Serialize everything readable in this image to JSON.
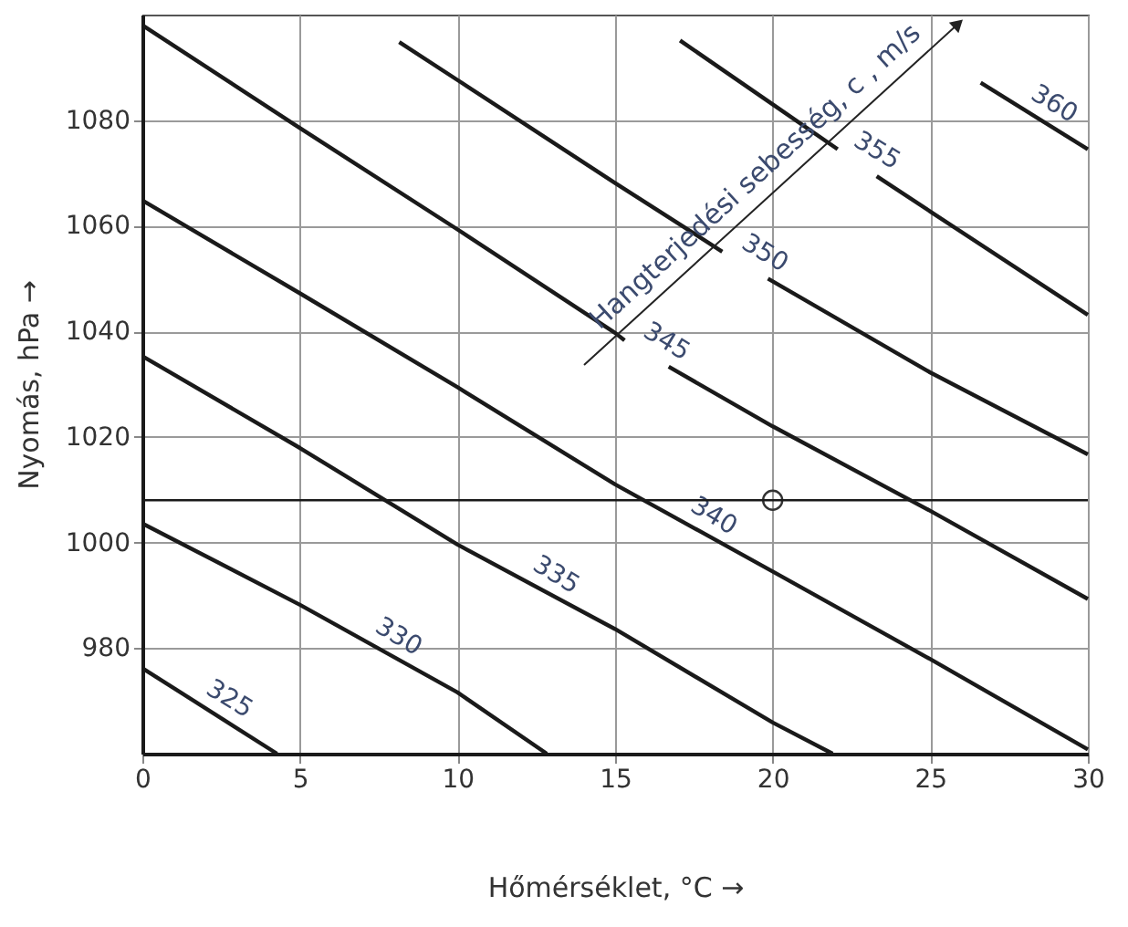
{
  "chart_data": {
    "type": "line",
    "xlabel": "Hőmérséklet, °C →",
    "ylabel": "Nyomás, hPa →",
    "annotations": [
      "Hangterjedési sebesség, c , m/s"
    ],
    "xlim": [
      0,
      30
    ],
    "xticks": [
      0,
      5,
      10,
      15,
      20,
      25,
      30
    ],
    "ylim": [
      960,
      1100
    ],
    "yticks": [
      980,
      1000,
      1020,
      1040,
      1060,
      1080
    ],
    "grid": true,
    "legend": false,
    "marker": "none",
    "line_style": "solid",
    "series": [
      {
        "name": "325",
        "color": "#1a1a1a",
        "x": [
          0,
          4.27
        ],
        "values": [
          976.2,
          960
        ]
      },
      {
        "name": "330",
        "color": "#1a1a1a",
        "x": [
          0,
          5,
          10,
          12.83
        ],
        "values": [
          1003.6,
          988.2,
          971.6,
          960
        ]
      },
      {
        "name": "335",
        "color": "#1a1a1a",
        "x": [
          0,
          5,
          10,
          15,
          20,
          21.9
        ],
        "values": [
          1035.3,
          1017.9,
          999.6,
          983.6,
          965.9,
          960
        ]
      },
      {
        "name": "340",
        "color": "#1a1a1a",
        "x": [
          0,
          5,
          10,
          15,
          20,
          25,
          30
        ],
        "values": [
          1064.8,
          1047.2,
          1029.4,
          1011,
          994.5,
          977.9,
          960.8
        ]
      },
      {
        "name": "345",
        "color": "#1a1a1a",
        "x": [
          0,
          5,
          10,
          15,
          15.3,
          16,
          16.7,
          20,
          25,
          30
        ],
        "values": [
          1098,
          1078.5,
          1059.3,
          1039.7,
          1038.3,
          null,
          1033.3,
          1022,
          1006,
          989.3
        ]
      },
      {
        "name": "350",
        "color": "#1a1a1a",
        "x": [
          8.15,
          10,
          15,
          18.4,
          19.1,
          19.85,
          25,
          30
        ],
        "values": [
          1094.8,
          1087.6,
          1068.1,
          1055.1,
          null,
          1050,
          1032.2,
          1016.7
        ]
      },
      {
        "name": "355",
        "color": "#1a1a1a",
        "x": [
          17.06,
          20,
          22.06,
          22.7,
          23.3,
          25,
          30
        ],
        "values": [
          1095.1,
          1083,
          1074.5,
          null,
          1069.4,
          1062.7,
          1043.1
        ]
      },
      {
        "name": "360",
        "color": "#1a1a1a",
        "x": [
          26.6,
          30
        ],
        "values": [
          1087.1,
          1074.5
        ]
      },
      {
        "type": "scatter",
        "marker": "circle",
        "color": "#333333",
        "x": [
          20
        ],
        "values": [
          1008
        ]
      }
    ],
    "ref_lines": [
      {
        "axis": "y",
        "value": 1008,
        "color": "#1a1a1a"
      }
    ]
  }
}
